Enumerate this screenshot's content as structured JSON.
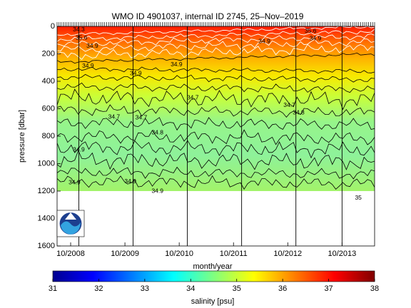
{
  "chart_data": [
    {
      "type": "heatmap",
      "title": "WMO ID 4901037, internal ID 2745, 25–Nov–2019",
      "xlabel": "month/year",
      "ylabel": "pressure [dbar]",
      "x_ticks": [
        "10/2008",
        "10/2009",
        "10/2010",
        "10/2011",
        "10/2012",
        "10/2013"
      ],
      "x_tick_decimal_years": [
        2008.75,
        2009.75,
        2010.75,
        2011.75,
        2012.75,
        2013.75
      ],
      "xlim_decimal_years": [
        2008.5,
        2014.35
      ],
      "y_ticks": [
        0,
        200,
        400,
        600,
        800,
        1000,
        1200,
        1400,
        1600
      ],
      "ylim": [
        0,
        1600
      ],
      "y_reversed": true,
      "data_max_pressure": 1200,
      "vertical_lines_decimal_years": [
        2008.9,
        2009.9,
        2010.9,
        2011.9,
        2012.9,
        2013.75
      ],
      "contour_labels": [
        {
          "text": "34.3",
          "x": 2008.9,
          "y": 25
        },
        {
          "text": "35.6",
          "x": 2008.95,
          "y": 85
        },
        {
          "text": "34.9",
          "x": 2009.15,
          "y": 145
        },
        {
          "text": "34.9",
          "x": 2009.07,
          "y": 290
        },
        {
          "text": "34.9",
          "x": 2009.95,
          "y": 345
        },
        {
          "text": "34.9",
          "x": 2010.7,
          "y": 280
        },
        {
          "text": "34.9",
          "x": 2012.32,
          "y": 110
        },
        {
          "text": "35.6",
          "x": 2013.17,
          "y": 35
        },
        {
          "text": "34.9",
          "x": 2013.26,
          "y": 90
        },
        {
          "text": "34.7",
          "x": 2011.0,
          "y": 520
        },
        {
          "text": "34.7",
          "x": 2009.55,
          "y": 660
        },
        {
          "text": "34.7",
          "x": 2010.05,
          "y": 665
        },
        {
          "text": "34.7",
          "x": 2012.78,
          "y": 575
        },
        {
          "text": "34.8",
          "x": 2012.95,
          "y": 630
        },
        {
          "text": "34.8",
          "x": 2010.35,
          "y": 775
        },
        {
          "text": "34.9",
          "x": 2008.9,
          "y": 900
        },
        {
          "text": "34.9",
          "x": 2008.82,
          "y": 1140
        },
        {
          "text": "34.9",
          "x": 2009.85,
          "y": 1130
        },
        {
          "text": "34.9",
          "x": 2010.35,
          "y": 1200
        },
        {
          "text": "35",
          "x": 2014.05,
          "y": 1250
        }
      ],
      "colorbar": {
        "label": "salinity [psu]",
        "ticks": [
          31,
          32,
          33,
          34,
          35,
          36,
          37,
          38
        ],
        "range": [
          31,
          38
        ],
        "colormap": "jet"
      },
      "logo": "noaa-logo"
    }
  ]
}
